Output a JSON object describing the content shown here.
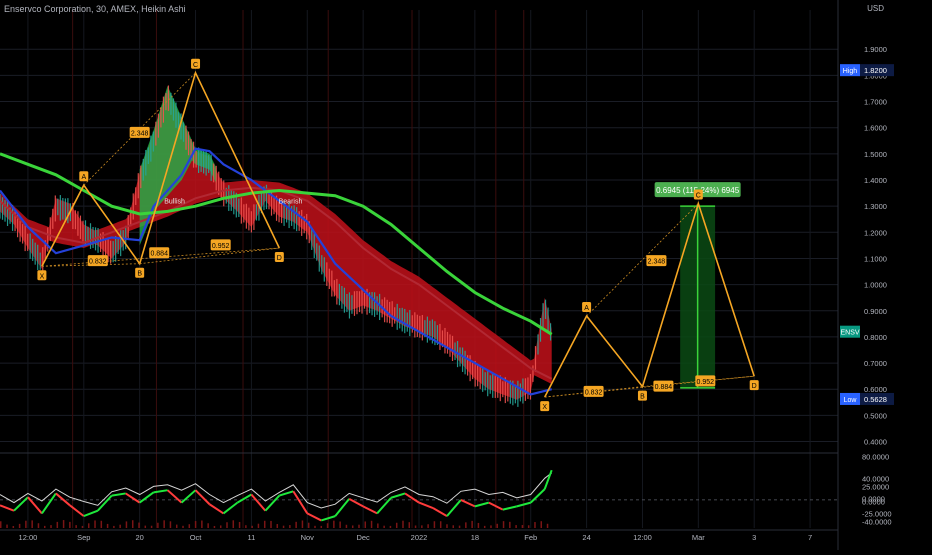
{
  "title": "Enservco Corporation, 30, AMEX, Heikin Ashi",
  "currency": "USD",
  "chart_data": {
    "type": "line",
    "main_axis": {
      "ylim": [
        0.36,
        2.05
      ],
      "ticks": [
        "1.9000",
        "1.8000",
        "1.7000",
        "1.6000",
        "1.5000",
        "1.4000",
        "1.3000",
        "1.2000",
        "1.1000",
        "1.0000",
        "0.9000",
        "0.8000",
        "0.7000",
        "0.6000",
        "0.5000",
        "0.4000"
      ],
      "tick_values": [
        1.9,
        1.8,
        1.7,
        1.6,
        1.5,
        1.4,
        1.3,
        1.2,
        1.1,
        1.0,
        0.9,
        0.8,
        0.7,
        0.6,
        0.5,
        0.4
      ]
    },
    "osc_axis": {
      "ylim": [
        -52,
        85
      ],
      "ticks": [
        "80.0000",
        "40.0000",
        "25.0000",
        "0.0000",
        "0.0000",
        "-25.0000",
        "-40.0000"
      ],
      "tick_values": [
        80,
        40,
        25,
        3,
        -3,
        -25,
        -40
      ]
    },
    "x_ticks": [
      "12:00",
      "Sep",
      "20",
      "Oct",
      "11",
      "Nov",
      "Dec",
      "2022",
      "18",
      "Feb",
      "24",
      "12:00",
      "Mar",
      "3",
      "7"
    ],
    "x_tick_pos": [
      0,
      4,
      8,
      12,
      16,
      20,
      24,
      28,
      32,
      36,
      40,
      44,
      48,
      52,
      56
    ],
    "x_range": [
      -2,
      58
    ],
    "price_series": {
      "x": [
        -2,
        -1,
        0,
        1,
        2,
        3,
        4,
        5,
        6,
        7,
        8,
        9,
        10,
        11,
        12,
        13,
        14,
        15,
        16,
        17,
        18,
        19,
        20,
        21,
        22,
        23,
        24,
        25,
        26,
        27,
        28,
        29,
        30,
        31,
        32,
        33,
        34,
        35,
        36,
        37,
        37.5
      ],
      "close": [
        1.3,
        1.25,
        1.16,
        1.08,
        1.3,
        1.28,
        1.2,
        1.17,
        1.12,
        1.18,
        1.4,
        1.55,
        1.72,
        1.6,
        1.48,
        1.46,
        1.35,
        1.3,
        1.24,
        1.34,
        1.28,
        1.26,
        1.22,
        1.08,
        0.98,
        0.92,
        0.94,
        0.92,
        0.89,
        0.86,
        0.84,
        0.82,
        0.78,
        0.72,
        0.66,
        0.62,
        0.6,
        0.58,
        0.61,
        0.92,
        0.8
      ]
    },
    "ma_green": {
      "name": "",
      "x": [
        -2,
        0,
        2,
        4,
        6,
        8,
        10,
        12,
        14,
        16,
        18,
        20,
        22,
        24,
        26,
        28,
        30,
        32,
        34,
        36,
        37.5
      ],
      "y": [
        1.5,
        1.46,
        1.42,
        1.36,
        1.3,
        1.27,
        1.28,
        1.3,
        1.33,
        1.35,
        1.36,
        1.35,
        1.34,
        1.3,
        1.23,
        1.14,
        1.05,
        0.97,
        0.91,
        0.86,
        0.81
      ]
    },
    "ma_blue": {
      "name": "",
      "x": [
        -2,
        0,
        2,
        4,
        6,
        8,
        9,
        11,
        12,
        13,
        14,
        16,
        18,
        20,
        22,
        24,
        26,
        28,
        30,
        32,
        34,
        36,
        37.5
      ],
      "y": [
        1.36,
        1.22,
        1.12,
        1.15,
        1.18,
        1.17,
        1.3,
        1.42,
        1.52,
        1.51,
        1.46,
        1.4,
        1.32,
        1.24,
        1.08,
        0.98,
        0.88,
        0.82,
        0.76,
        0.7,
        0.64,
        0.58,
        0.6
      ]
    },
    "ma_red": {
      "name": "",
      "x": [
        -2,
        0,
        2,
        4,
        6,
        8,
        10,
        12,
        14,
        16,
        18,
        20,
        22,
        24,
        26,
        28,
        30,
        32,
        34,
        36,
        37.5
      ],
      "y": [
        1.32,
        1.22,
        1.18,
        1.16,
        1.2,
        1.24,
        1.28,
        1.33,
        1.36,
        1.37,
        1.36,
        1.32,
        1.24,
        1.14,
        1.06,
        1.0,
        0.92,
        0.84,
        0.76,
        0.68,
        0.64
      ]
    },
    "pattern_1": {
      "points": [
        {
          "label": "X",
          "x": 1,
          "y": 1.07
        },
        {
          "label": "A",
          "x": 4,
          "y": 1.38
        },
        {
          "label": "B",
          "x": 8,
          "y": 1.08
        },
        {
          "label": "C",
          "x": 12,
          "y": 1.81
        },
        {
          "label": "D",
          "x": 18,
          "y": 1.14
        }
      ],
      "ratios": [
        {
          "text": "2.348",
          "x": 8,
          "y": 1.58
        },
        {
          "text": "0.832",
          "x": 5,
          "y": 1.09
        },
        {
          "text": "0.884",
          "x": 9.4,
          "y": 1.12
        },
        {
          "text": "0.952",
          "x": 13.8,
          "y": 1.15
        }
      ],
      "annotations": [
        {
          "text": "Bullish",
          "x": 10.5,
          "y": 1.31
        },
        {
          "text": "Bearish",
          "x": 18.8,
          "y": 1.31
        }
      ]
    },
    "pattern_2": {
      "points": [
        {
          "label": "X",
          "x": 37,
          "y": 0.57
        },
        {
          "label": "A",
          "x": 40,
          "y": 0.88
        },
        {
          "label": "B",
          "x": 44,
          "y": 0.61
        },
        {
          "label": "C",
          "x": 48,
          "y": 1.31
        },
        {
          "label": "D",
          "x": 52,
          "y": 0.65
        }
      ],
      "ratios": [
        {
          "text": "2.348",
          "x": 45,
          "y": 1.09
        },
        {
          "text": "0.832",
          "x": 40.5,
          "y": 0.59
        },
        {
          "text": "0.884",
          "x": 45.5,
          "y": 0.61
        },
        {
          "text": "0.952",
          "x": 48.5,
          "y": 0.63
        }
      ]
    },
    "target_box": {
      "x0": 46.7,
      "x1": 49.2,
      "y0": 0.605,
      "y1": 1.3,
      "label": "0.6945 (115.24%) 6945"
    },
    "price_labels": [
      {
        "name": "High",
        "value": "1.8200",
        "y": 1.82,
        "color": "#2962ff"
      },
      {
        "name": "ENSV",
        "value": "",
        "y": 0.82,
        "color": "#089981"
      },
      {
        "name": "Low",
        "value": "0.5628",
        "y": 0.5628,
        "color": "#2962ff"
      }
    ],
    "oscillator": {
      "x": [
        -2,
        -1,
        0,
        1,
        2,
        3,
        4,
        5,
        6,
        7,
        8,
        9,
        10,
        11,
        12,
        13,
        14,
        15,
        16,
        17,
        18,
        19,
        20,
        21,
        22,
        23,
        24,
        25,
        26,
        27,
        28,
        29,
        30,
        31,
        32,
        33,
        34,
        35,
        36,
        37,
        37.5
      ],
      "white": [
        10,
        -5,
        12,
        -2,
        20,
        5,
        -3,
        -10,
        15,
        22,
        10,
        25,
        28,
        18,
        30,
        10,
        -5,
        8,
        20,
        -2,
        14,
        28,
        -5,
        -15,
        -8,
        12,
        4,
        -4,
        14,
        24,
        10,
        6,
        -6,
        16,
        20,
        10,
        14,
        4,
        10,
        40,
        50
      ],
      "color": [
        -10,
        -20,
        5,
        -25,
        12,
        -10,
        -30,
        -20,
        8,
        12,
        -5,
        14,
        18,
        -5,
        18,
        -8,
        -25,
        -5,
        10,
        -20,
        8,
        16,
        -25,
        -38,
        -30,
        2,
        -12,
        -25,
        4,
        12,
        -5,
        -15,
        -30,
        0,
        -12,
        -5,
        -18,
        -12,
        -5,
        20,
        55
      ]
    }
  }
}
